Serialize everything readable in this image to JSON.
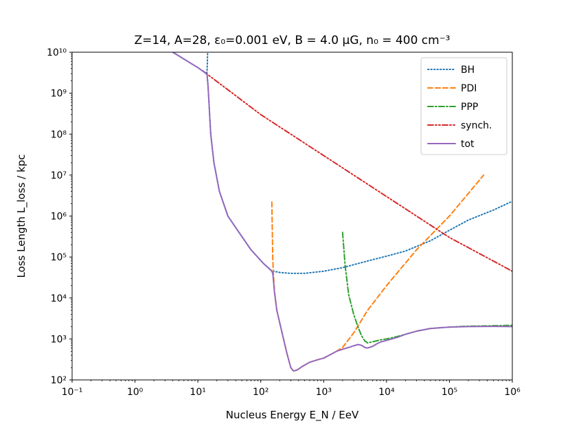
{
  "chart_data": {
    "type": "line",
    "title": "Z=14, A=28, ε₀=0.001 eV, B = 4.0 μG, n₀ = 400 cm⁻³",
    "xlabel": "Nucleus Energy E_N / EeV",
    "ylabel": "Loss Length L_loss / kpc",
    "xscale": "log",
    "yscale": "log",
    "xlim": [
      0.1,
      1000000
    ],
    "ylim": [
      100,
      10000000000
    ],
    "x_tick_labels": [
      "10⁻¹",
      "10⁰",
      "10¹",
      "10²",
      "10³",
      "10⁴",
      "10⁵",
      "10⁶"
    ],
    "y_tick_labels": [
      "10²",
      "10³",
      "10⁴",
      "10⁵",
      "10⁶",
      "10⁷",
      "10⁸",
      "10⁹",
      "10¹⁰"
    ],
    "grid": false,
    "legend_position": "top-right",
    "series": [
      {
        "name": "BH",
        "color": "#1f77b4",
        "style": "dotted",
        "points": [
          [
            4,
            10000000000
          ],
          [
            10,
            4200000000
          ],
          [
            12.5,
            3300000000
          ],
          [
            13.5,
            3000000000
          ],
          [
            14,
            3300000000
          ],
          [
            14.3,
            10000000000
          ]
        ]
      },
      {
        "name": "BH",
        "color": "#1f77b4",
        "style": "dotted",
        "legend": false,
        "points": [
          [
            14,
            3000000000
          ],
          [
            14.5,
            1500000000
          ],
          [
            15,
            600000000
          ],
          [
            16,
            100000000
          ],
          [
            18,
            20000000
          ],
          [
            22,
            4000000
          ],
          [
            30,
            1000000
          ],
          [
            45,
            400000
          ],
          [
            70,
            150000
          ],
          [
            110,
            70000
          ],
          [
            150,
            46000
          ],
          [
            200,
            42000
          ],
          [
            300,
            40000
          ],
          [
            500,
            40000
          ],
          [
            1000,
            45000
          ],
          [
            2000,
            55000
          ],
          [
            3000,
            65000
          ],
          [
            5000,
            80000
          ],
          [
            10000,
            105000
          ],
          [
            20000,
            140000
          ],
          [
            50000,
            250000
          ],
          [
            100000,
            450000
          ],
          [
            200000,
            800000
          ],
          [
            500000,
            1400000
          ],
          [
            1000000,
            2300000
          ]
        ]
      },
      {
        "name": "PDI",
        "color": "#ff7f0e",
        "style": "dashed",
        "points": [
          [
            150,
            2200000
          ],
          [
            152,
            600000
          ],
          [
            155,
            100000
          ],
          [
            158,
            45000
          ],
          [
            165,
            15000
          ],
          [
            180,
            5000
          ],
          [
            200,
            2500
          ],
          [
            230,
            1000
          ],
          [
            260,
            450
          ],
          [
            300,
            200
          ],
          [
            330,
            165
          ],
          [
            380,
            175
          ],
          [
            450,
            210
          ],
          [
            600,
            270
          ],
          [
            800,
            310
          ],
          [
            1000,
            340
          ],
          [
            1300,
            420
          ],
          [
            1600,
            500
          ],
          [
            2000,
            620
          ],
          [
            3000,
            1400
          ],
          [
            5000,
            5000
          ],
          [
            10000,
            20000
          ],
          [
            30000,
            150000
          ],
          [
            100000,
            1000000
          ],
          [
            350000,
            10000000
          ]
        ]
      },
      {
        "name": "PPP",
        "color": "#2ca02c",
        "style": "dashdot",
        "points": [
          [
            2000,
            400000
          ],
          [
            2200,
            60000
          ],
          [
            2500,
            12000
          ],
          [
            3000,
            4000
          ],
          [
            3500,
            2000
          ],
          [
            4000,
            1200
          ],
          [
            4500,
            900
          ],
          [
            5000,
            800
          ],
          [
            6000,
            850
          ],
          [
            7000,
            900
          ],
          [
            8000,
            950
          ],
          [
            10000,
            1000
          ],
          [
            15000,
            1150
          ],
          [
            20000,
            1300
          ],
          [
            30000,
            1550
          ],
          [
            50000,
            1800
          ],
          [
            100000,
            1950
          ],
          [
            200000,
            2050
          ],
          [
            500000,
            2100
          ],
          [
            1000000,
            2150
          ]
        ]
      },
      {
        "name": "synch.",
        "color": "#d62728",
        "style": "dashdotdot",
        "points": [
          [
            12,
            3500000000
          ],
          [
            100,
            300000000
          ],
          [
            1000,
            30000000
          ],
          [
            10000,
            3000000
          ],
          [
            100000,
            300000
          ],
          [
            1000000,
            45000
          ]
        ]
      },
      {
        "name": "tot",
        "color": "#9467bd",
        "style": "solid",
        "points": [
          [
            4,
            10000000000
          ],
          [
            10,
            4200000000
          ],
          [
            12.5,
            3300000000
          ],
          [
            13.5,
            3000000000
          ],
          [
            14,
            2800000000
          ],
          [
            14.5,
            1500000000
          ],
          [
            15,
            600000000
          ],
          [
            16,
            100000000
          ],
          [
            18,
            20000000
          ],
          [
            22,
            4000000
          ],
          [
            30,
            1000000
          ],
          [
            45,
            400000
          ],
          [
            70,
            150000
          ],
          [
            110,
            70000
          ],
          [
            150,
            45000
          ],
          [
            155,
            40000
          ],
          [
            158,
            30000
          ],
          [
            165,
            14000
          ],
          [
            180,
            5000
          ],
          [
            200,
            2500
          ],
          [
            230,
            1000
          ],
          [
            260,
            450
          ],
          [
            300,
            200
          ],
          [
            330,
            165
          ],
          [
            380,
            175
          ],
          [
            450,
            210
          ],
          [
            600,
            270
          ],
          [
            800,
            310
          ],
          [
            1000,
            340
          ],
          [
            1300,
            420
          ],
          [
            1600,
            500
          ],
          [
            2000,
            560
          ],
          [
            2500,
            620
          ],
          [
            3000,
            680
          ],
          [
            3500,
            730
          ],
          [
            4000,
            700
          ],
          [
            4500,
            620
          ],
          [
            5000,
            600
          ],
          [
            6000,
            660
          ],
          [
            7000,
            760
          ],
          [
            8000,
            840
          ],
          [
            10000,
            920
          ],
          [
            15000,
            1100
          ],
          [
            20000,
            1300
          ],
          [
            30000,
            1550
          ],
          [
            50000,
            1800
          ],
          [
            100000,
            1950
          ],
          [
            200000,
            2000
          ],
          [
            500000,
            2020
          ],
          [
            1000000,
            2000
          ]
        ]
      }
    ]
  }
}
